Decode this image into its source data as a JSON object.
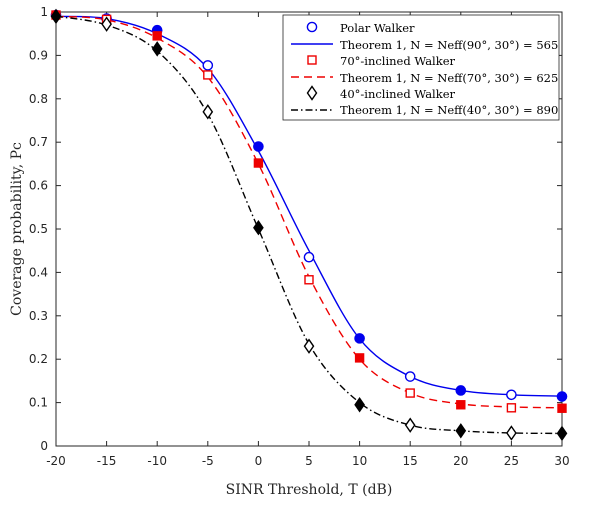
{
  "chart_data": {
    "type": "line",
    "xlabel": "SINR Threshold, T (dB)",
    "ylabel": "Coverage probability, Pc",
    "xlim": [
      -20,
      30
    ],
    "ylim": [
      0,
      1
    ],
    "xticks": [
      -20,
      -15,
      -10,
      -5,
      0,
      5,
      10,
      15,
      20,
      25,
      30
    ],
    "yticks": [
      0,
      0.1,
      0.2,
      0.3,
      0.4,
      0.5,
      0.6,
      0.7,
      0.8,
      0.9,
      1
    ],
    "xtick_labels": [
      "-20",
      "-15",
      "-10",
      "-5",
      "0",
      "5",
      "10",
      "15",
      "20",
      "25",
      "30"
    ],
    "ytick_labels": [
      "0",
      "0.1",
      "0.2",
      "0.3",
      "0.4",
      "0.5",
      "0.6",
      "0.7",
      "0.8",
      "0.9",
      "1"
    ],
    "grid": false,
    "legend_position": "top-right",
    "x": [
      -20,
      -15,
      -10,
      -5,
      0,
      5,
      10,
      15,
      20,
      25,
      30
    ],
    "series": [
      {
        "name": "Polar Walker",
        "kind": "markers",
        "marker": "circle",
        "color": "#0000ee",
        "values": [
          0.993,
          0.985,
          0.958,
          0.877,
          0.69,
          0.435,
          0.248,
          0.16,
          0.128,
          0.118,
          0.114
        ],
        "filled": [
          true,
          false,
          true,
          false,
          true,
          false,
          true,
          false,
          true,
          false,
          true
        ]
      },
      {
        "name": "Theorem 1, N = Neff(90°, 30°) = 565",
        "kind": "line",
        "dash": "solid",
        "color": "#0000ee",
        "values": [
          0.99,
          0.985,
          0.95,
          0.87,
          0.68,
          0.45,
          0.247,
          0.16,
          0.128,
          0.118,
          0.115
        ]
      },
      {
        "name": "70°-inclined Walker",
        "kind": "markers",
        "marker": "square",
        "color": "#ee0000",
        "values": [
          0.993,
          0.983,
          0.945,
          0.855,
          0.652,
          0.383,
          0.203,
          0.122,
          0.095,
          0.088,
          0.087
        ],
        "filled": [
          true,
          false,
          true,
          false,
          true,
          false,
          true,
          false,
          true,
          false,
          true
        ]
      },
      {
        "name": "Theorem 1, N = Neff(70°, 30°) = 625",
        "kind": "line",
        "dash": "dashed",
        "color": "#ee0000",
        "values": [
          0.99,
          0.982,
          0.94,
          0.85,
          0.65,
          0.39,
          0.2,
          0.122,
          0.097,
          0.09,
          0.088
        ]
      },
      {
        "name": "40°-inclined Walker",
        "kind": "markers",
        "marker": "diamond",
        "color": "#000000",
        "values": [
          0.99,
          0.972,
          0.915,
          0.77,
          0.503,
          0.23,
          0.095,
          0.048,
          0.035,
          0.03,
          0.029
        ],
        "filled": [
          true,
          false,
          true,
          false,
          true,
          false,
          true,
          false,
          true,
          false,
          true
        ]
      },
      {
        "name": "Theorem 1, N = Neff(40°, 30°) = 890",
        "kind": "line",
        "dash": "dashdot",
        "color": "#000000",
        "values": [
          0.99,
          0.97,
          0.91,
          0.765,
          0.5,
          0.235,
          0.1,
          0.048,
          0.035,
          0.03,
          0.029
        ]
      }
    ]
  }
}
